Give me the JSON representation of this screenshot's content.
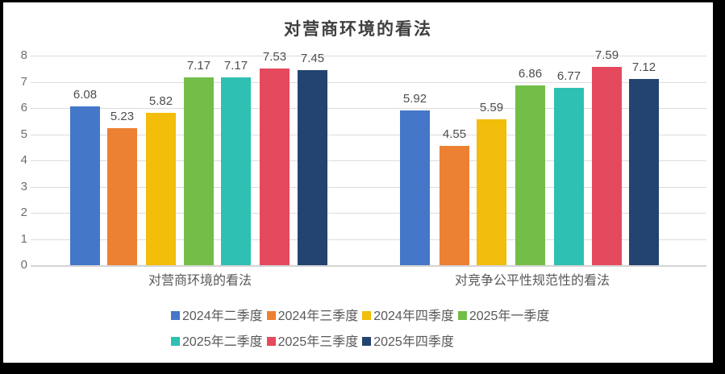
{
  "frame": {
    "border_color": "#000000",
    "background": "#ffffff"
  },
  "chart_data": {
    "type": "bar",
    "title": "对营商环境的看法",
    "categories": [
      "对营商环境的看法",
      "对竞争公平性规范性的看法"
    ],
    "series": [
      {
        "name": "2024年二季度",
        "color": "#4577C9",
        "values": [
          6.08,
          5.92
        ]
      },
      {
        "name": "2024年三季度",
        "color": "#EC8033",
        "values": [
          5.23,
          4.55
        ]
      },
      {
        "name": "2024年四季度",
        "color": "#F2BD0B",
        "values": [
          5.82,
          5.59
        ]
      },
      {
        "name": "2025年一季度",
        "color": "#72BE48",
        "values": [
          7.17,
          6.86
        ]
      },
      {
        "name": "2025年二季度",
        "color": "#2EC0B2",
        "values": [
          7.17,
          6.77
        ]
      },
      {
        "name": "2025年三季度",
        "color": "#E4495E",
        "values": [
          7.53,
          7.59
        ]
      },
      {
        "name": "2025年四季度",
        "color": "#234370",
        "values": [
          7.45,
          7.12
        ]
      }
    ],
    "ylim": [
      0,
      8
    ],
    "yticks": [
      0,
      1,
      2,
      3,
      4,
      5,
      6,
      7,
      8
    ],
    "grid": true,
    "data_labels": true,
    "legend_position": "bottom",
    "legend_rows": [
      [
        0,
        1,
        2,
        3
      ],
      [
        4,
        5,
        6
      ]
    ],
    "colors": {
      "title_text": "#3f3f3f",
      "axis_text": "#6e6e6e",
      "data_label_text": "#4d4d4d",
      "category_text": "#595959",
      "legend_text": "#595959",
      "gridline": "#dcdcdc",
      "axis_line": "#d4d4d4"
    }
  }
}
